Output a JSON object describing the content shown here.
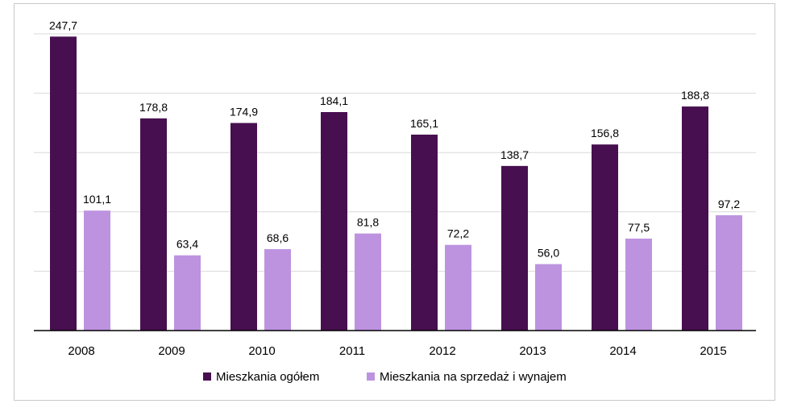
{
  "chart_data": {
    "type": "bar",
    "title": "",
    "xlabel": "",
    "ylabel": "",
    "categories": [
      "2008",
      "2009",
      "2010",
      "2011",
      "2012",
      "2013",
      "2014",
      "2015"
    ],
    "ylim": [
      0,
      250
    ],
    "grid": true,
    "legend_position": "bottom",
    "series": [
      {
        "name": "Mieszkania ogółem",
        "color": "#470f4f",
        "values": [
          247.7,
          178.8,
          174.9,
          184.1,
          165.1,
          138.7,
          156.8,
          188.8
        ],
        "labels": [
          "247,7",
          "178,8",
          "174,9",
          "184,1",
          "165,1",
          "138,7",
          "156,8",
          "188,8"
        ]
      },
      {
        "name": "Mieszkania na sprzedaż i wynajem",
        "color": "#bd93e0",
        "values": [
          101.1,
          63.4,
          68.6,
          81.8,
          72.2,
          56.0,
          77.5,
          97.2
        ],
        "labels": [
          "101,1",
          "63,4",
          "68,6",
          "81,8",
          "72,2",
          "56,0",
          "77,5",
          "97,2"
        ]
      }
    ]
  }
}
